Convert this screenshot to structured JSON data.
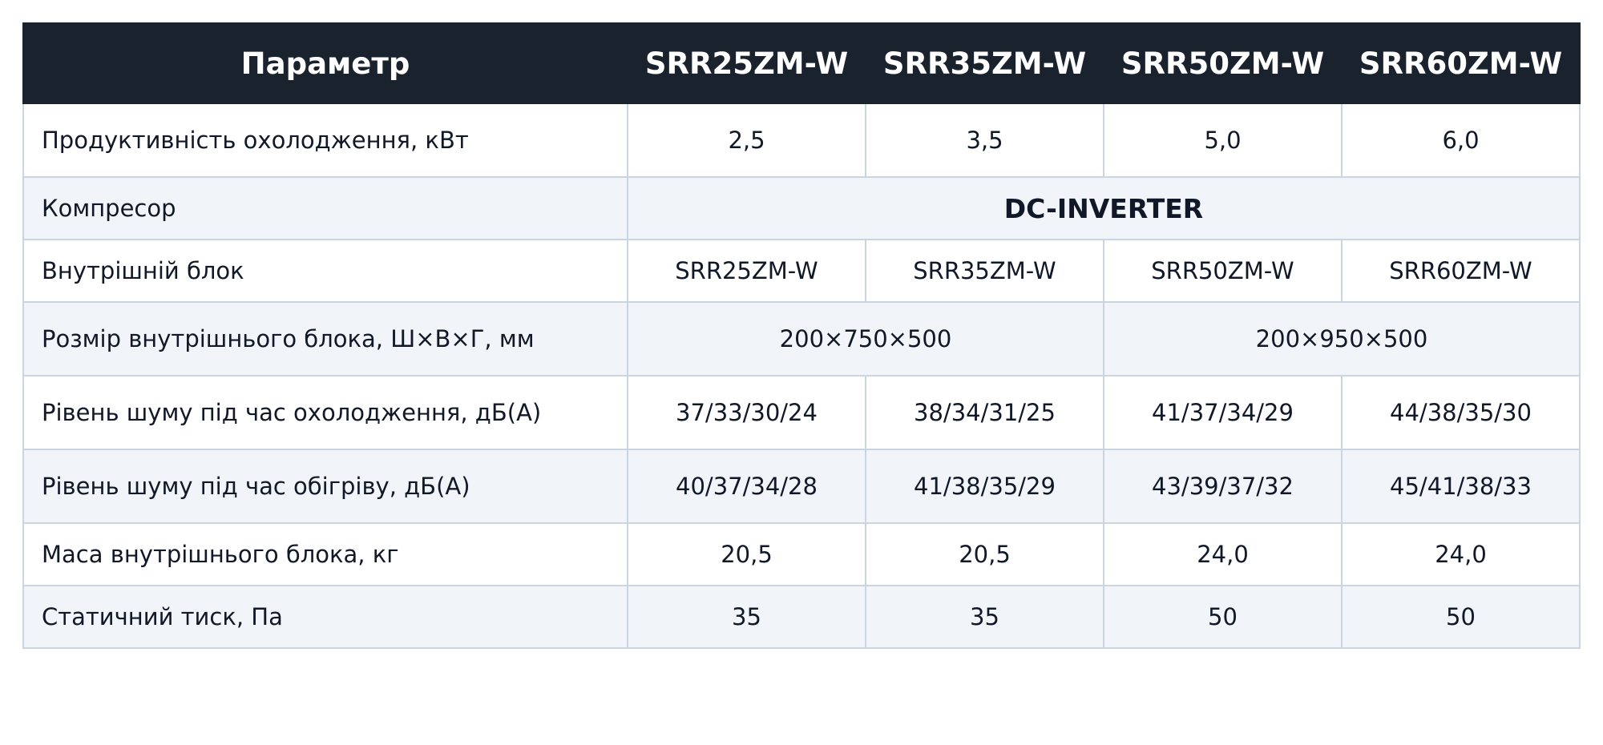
{
  "table": {
    "header": [
      "Параметр",
      "SRR25ZM-W",
      "SRR35ZM-W",
      "SRR50ZM-W",
      "SRR60ZM-W"
    ],
    "rows": [
      [
        "Продуктивність охолодження, кВт",
        "2,5",
        "3,5",
        "5,0",
        "6,0"
      ],
      [
        "Компресор",
        "DC-INVERTER"
      ],
      [
        "Внутрішній блок",
        "SRR25ZM-W",
        "SRR35ZM-W",
        "SRR50ZM-W",
        "SRR60ZM-W"
      ],
      [
        "Розмір внутрішнього блока, Ш×В×Г, мм",
        "200×750×500",
        "200×950×500"
      ],
      [
        "Рівень шуму під час охолодження, дБ(А)",
        "37/33/30/24",
        "38/34/31/25",
        "41/37/34/29",
        "44/38/35/30"
      ],
      [
        "Рівень шуму під час обігріву, дБ(А)",
        "40/37/34/28",
        "41/38/35/29",
        "43/39/37/32",
        "45/41/38/33"
      ],
      [
        "Маса внутрішнього блока, кг",
        "20,5",
        "20,5",
        "24,0",
        "24,0"
      ],
      [
        "Статичний тиск, Па",
        "35",
        "35",
        "50",
        "50"
      ]
    ]
  }
}
